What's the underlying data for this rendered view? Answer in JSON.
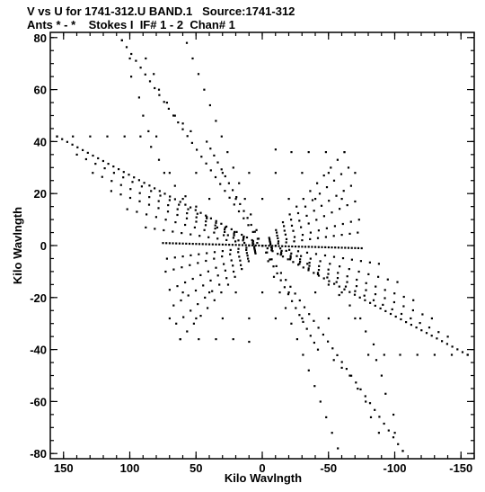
{
  "header": {
    "line1": "V vs U for 1741-312.U BAND.1   Source:1741-312",
    "line2": "Ants * - *    Stokes I  IF# 1 - 2  Chan# 1"
  },
  "chart_data": {
    "type": "scatter",
    "title": "V vs U for 1741-312.U BAND.1   Source:1741-312",
    "subtitle": "Ants * - *    Stokes I  IF# 1 - 2  Chan# 1",
    "xlabel": "Kilo Wavlngth",
    "ylabel": "Kilo Wavlngth",
    "xlim": [
      160,
      -160
    ],
    "ylim": [
      -82,
      82
    ],
    "x_ticks": [
      150,
      100,
      50,
      0,
      -50,
      -100,
      -150
    ],
    "x_tick_labels": [
      "150",
      "100",
      "50",
      "0",
      "-50",
      "-100",
      "-150"
    ],
    "y_ticks": [
      80,
      60,
      40,
      20,
      0,
      -20,
      -40,
      -60,
      -80
    ],
    "y_tick_labels": [
      "80",
      "60",
      "40",
      "20",
      "0",
      "-20",
      "-40",
      "-60",
      "-80"
    ],
    "grid": false,
    "marker_color": "#000000",
    "tracks": [
      {
        "from": [
          106,
          79
        ],
        "to": [
          -106,
          -79
        ],
        "n": 60
      },
      {
        "from": [
          57,
          78
        ],
        "to": [
          -57,
          -78
        ],
        "n": 26
      },
      {
        "from": [
          42,
          40
        ],
        "to": [
          -42,
          -40
        ],
        "n": 30
      },
      {
        "from": [
          155,
          42
        ],
        "to": [
          -155,
          -42
        ],
        "n": 80
      },
      {
        "from": [
          140,
          35
        ],
        "to": [
          -140,
          -35
        ],
        "n": 40
      },
      {
        "from": [
          128,
          28
        ],
        "to": [
          -128,
          -28
        ],
        "n": 36
      },
      {
        "from": [
          114,
          21
        ],
        "to": [
          -114,
          -21
        ],
        "n": 32
      },
      {
        "from": [
          102,
          14
        ],
        "to": [
          -102,
          -14
        ],
        "n": 28
      },
      {
        "from": [
          88,
          7
        ],
        "to": [
          -88,
          -7
        ],
        "n": 26
      },
      {
        "from": [
          75,
          1
        ],
        "to": [
          -75,
          -1
        ],
        "n": 60
      },
      {
        "from": [
          -62,
          36
        ],
        "to": [
          62,
          -36
        ],
        "n": 24
      },
      {
        "from": [
          -65,
          30
        ],
        "to": [
          65,
          -30
        ],
        "n": 24
      },
      {
        "from": [
          -67,
          23
        ],
        "to": [
          67,
          -23
        ],
        "n": 24
      },
      {
        "from": [
          -70,
          17
        ],
        "to": [
          70,
          -17
        ],
        "n": 24
      },
      {
        "from": [
          -73,
          10
        ],
        "to": [
          73,
          -10
        ],
        "n": 24
      },
      {
        "from": [
          -72,
          5
        ],
        "to": [
          72,
          -5
        ],
        "n": 24
      }
    ],
    "points": [
      [
        106,
        79
      ],
      [
        100,
        72
      ],
      [
        99,
        65
      ],
      [
        93,
        57
      ],
      [
        90,
        50
      ],
      [
        86,
        44
      ],
      [
        84,
        38
      ],
      [
        78,
        33
      ],
      [
        74,
        28
      ],
      [
        66,
        23
      ],
      [
        58,
        19
      ],
      [
        50,
        15
      ],
      [
        42,
        11
      ],
      [
        34,
        7
      ],
      [
        26,
        4
      ],
      [
        18,
        2
      ],
      [
        10,
        0
      ],
      [
        0,
        0
      ],
      [
        -10,
        0
      ],
      [
        -18,
        -2
      ],
      [
        -26,
        -4
      ],
      [
        -34,
        -7
      ],
      [
        -42,
        -11
      ],
      [
        -50,
        -15
      ],
      [
        -58,
        -19
      ],
      [
        -66,
        -23
      ],
      [
        -74,
        -28
      ],
      [
        -78,
        -33
      ],
      [
        -84,
        -38
      ],
      [
        -86,
        -44
      ],
      [
        -90,
        -50
      ],
      [
        -93,
        -57
      ],
      [
        -99,
        -65
      ],
      [
        -100,
        -72
      ],
      [
        -106,
        -79
      ],
      [
        88,
        72
      ],
      [
        82,
        66
      ],
      [
        78,
        60
      ],
      [
        72,
        55
      ],
      [
        66,
        50
      ],
      [
        60,
        47
      ],
      [
        54,
        44
      ],
      [
        -88,
        -72
      ],
      [
        -82,
        -66
      ],
      [
        -78,
        -60
      ],
      [
        -72,
        -55
      ],
      [
        -66,
        -50
      ],
      [
        -60,
        -47
      ],
      [
        -54,
        -44
      ],
      [
        155,
        42
      ],
      [
        143,
        42
      ],
      [
        130,
        42
      ],
      [
        117,
        42
      ],
      [
        104,
        42
      ],
      [
        92,
        42
      ],
      [
        80,
        42
      ],
      [
        -155,
        -42
      ],
      [
        -143,
        -42
      ],
      [
        -130,
        -42
      ],
      [
        -117,
        -42
      ],
      [
        -104,
        -42
      ],
      [
        -92,
        -42
      ],
      [
        -80,
        -42
      ],
      [
        -62,
        36
      ],
      [
        -48,
        36
      ],
      [
        -35,
        36
      ],
      [
        -22,
        36
      ],
      [
        -10,
        37
      ],
      [
        62,
        -36
      ],
      [
        48,
        -36
      ],
      [
        35,
        -36
      ],
      [
        22,
        -36
      ],
      [
        10,
        -37
      ],
      [
        60,
        -18
      ],
      [
        40,
        -18
      ],
      [
        20,
        -18
      ],
      [
        0,
        -18
      ],
      [
        -20,
        -18
      ],
      [
        -40,
        -18
      ],
      [
        -60,
        -18
      ],
      [
        -60,
        18
      ],
      [
        -40,
        18
      ],
      [
        -20,
        18
      ],
      [
        0,
        18
      ],
      [
        20,
        18
      ],
      [
        40,
        18
      ],
      [
        60,
        18
      ],
      [
        70,
        -28
      ],
      [
        50,
        -28
      ],
      [
        30,
        -28
      ],
      [
        10,
        -28
      ],
      [
        -10,
        -28
      ],
      [
        -30,
        -28
      ],
      [
        -50,
        -28
      ],
      [
        -70,
        -28
      ],
      [
        -70,
        28
      ],
      [
        -50,
        28
      ],
      [
        -30,
        28
      ],
      [
        -10,
        28
      ],
      [
        10,
        28
      ],
      [
        30,
        28
      ],
      [
        50,
        28
      ],
      [
        70,
        28
      ]
    ]
  }
}
